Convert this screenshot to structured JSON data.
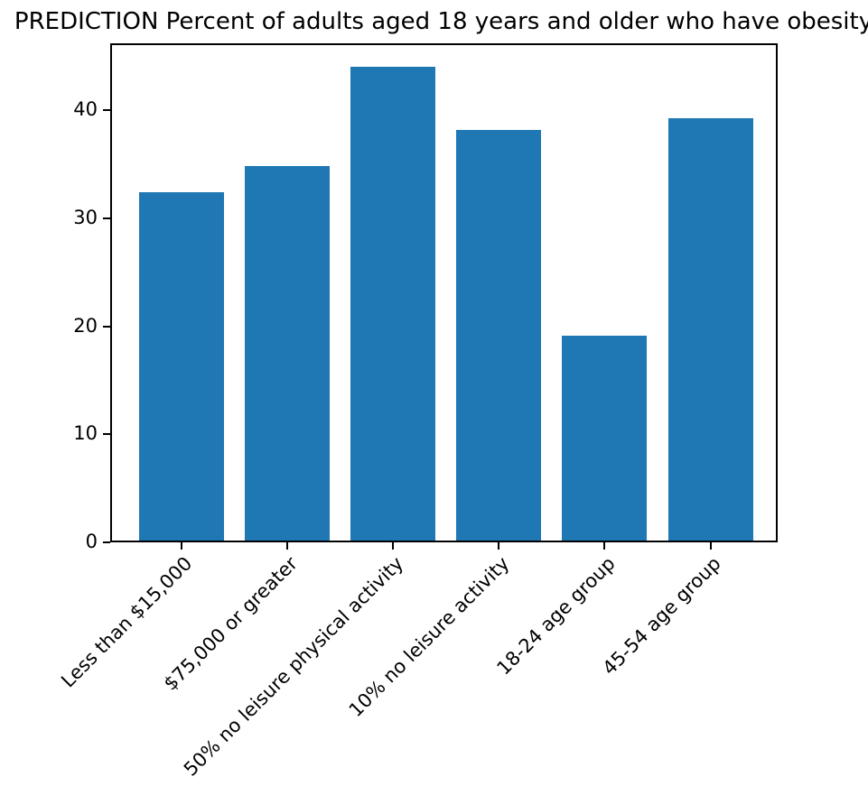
{
  "chart_data": {
    "type": "bar",
    "title": "PREDICTION Percent of adults aged 18 years and older who have obesity",
    "categories": [
      "Less than $15,000",
      "$75,000 or greater",
      "50% no leisure physical activity",
      "10% no leisure activity",
      "18-24 age group",
      "45-54 age group"
    ],
    "values": [
      32.4,
      34.8,
      44.0,
      38.2,
      19.1,
      39.3
    ],
    "xlabel": "",
    "ylabel": "",
    "ylim": [
      0,
      46.2
    ],
    "yticks": [
      0,
      10,
      20,
      30,
      40
    ],
    "x_tick_rotation": 45,
    "grid": false,
    "legend_position": "none",
    "bar_color": "#1f77b4",
    "text_color": "#000000",
    "background_color": "#ffffff"
  }
}
